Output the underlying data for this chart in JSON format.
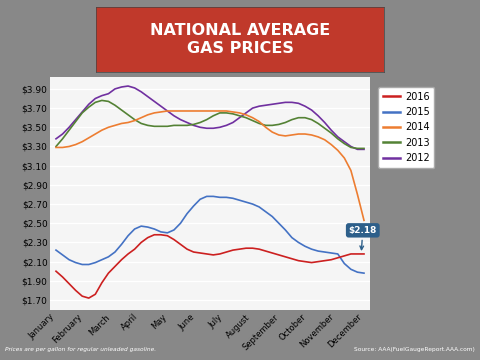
{
  "title": "NATIONAL AVERAGE\nGAS PRICES",
  "title_bg": "#c0392b",
  "chart_bg": "#f2f2f2",
  "outer_bg": "#7a7a7a",
  "ylabel_ticks": [
    "$1.70",
    "$1.90",
    "$2.10",
    "$2.30",
    "$2.50",
    "$2.70",
    "$2.90",
    "$3.10",
    "$3.30",
    "$3.50",
    "$3.70",
    "$3.90"
  ],
  "ylim": [
    1.6,
    4.02
  ],
  "months": [
    "January",
    "February",
    "March",
    "April",
    "May",
    "June",
    "July",
    "August",
    "September",
    "October",
    "November",
    "December"
  ],
  "annotation_text": "$2.18",
  "footer_left": "Prices are per gallon for regular unleaded gasoline.",
  "footer_right": "Source: AAA(FuelGaugeReport.AAA.com)",
  "legend_labels": [
    "2016",
    "2015",
    "2014",
    "2013",
    "2012"
  ],
  "legend_colors": [
    "#cc2020",
    "#4472c4",
    "#ed7d31",
    "#548235",
    "#7030a0"
  ],
  "year_data": {
    "2016": [
      2.0,
      1.94,
      1.87,
      1.8,
      1.74,
      1.72,
      1.76,
      1.88,
      1.98,
      2.05,
      2.12,
      2.18,
      2.23,
      2.3,
      2.35,
      2.38,
      2.38,
      2.37,
      2.33,
      2.28,
      2.23,
      2.2,
      2.19,
      2.18,
      2.17,
      2.18,
      2.2,
      2.22,
      2.23,
      2.24,
      2.24,
      2.23,
      2.21,
      2.19,
      2.17,
      2.15,
      2.13,
      2.11,
      2.1,
      2.09,
      2.1,
      2.11,
      2.12,
      2.14,
      2.16,
      2.18,
      2.18,
      2.18
    ],
    "2015": [
      2.22,
      2.17,
      2.12,
      2.09,
      2.07,
      2.07,
      2.09,
      2.12,
      2.15,
      2.2,
      2.28,
      2.37,
      2.44,
      2.47,
      2.46,
      2.44,
      2.41,
      2.4,
      2.43,
      2.5,
      2.6,
      2.68,
      2.75,
      2.78,
      2.78,
      2.77,
      2.77,
      2.76,
      2.74,
      2.72,
      2.7,
      2.67,
      2.62,
      2.57,
      2.5,
      2.43,
      2.35,
      2.3,
      2.26,
      2.23,
      2.21,
      2.2,
      2.19,
      2.18,
      2.08,
      2.02,
      1.99,
      1.98
    ],
    "2014": [
      3.29,
      3.29,
      3.3,
      3.32,
      3.35,
      3.39,
      3.43,
      3.47,
      3.5,
      3.52,
      3.54,
      3.55,
      3.57,
      3.6,
      3.63,
      3.65,
      3.66,
      3.67,
      3.67,
      3.67,
      3.67,
      3.67,
      3.67,
      3.67,
      3.67,
      3.67,
      3.67,
      3.66,
      3.65,
      3.63,
      3.6,
      3.56,
      3.5,
      3.45,
      3.42,
      3.41,
      3.42,
      3.43,
      3.43,
      3.42,
      3.4,
      3.37,
      3.32,
      3.26,
      3.18,
      3.05,
      2.8,
      2.53
    ],
    "2013": [
      3.3,
      3.38,
      3.47,
      3.56,
      3.65,
      3.71,
      3.76,
      3.78,
      3.77,
      3.73,
      3.68,
      3.63,
      3.58,
      3.54,
      3.52,
      3.51,
      3.51,
      3.51,
      3.52,
      3.52,
      3.52,
      3.53,
      3.55,
      3.58,
      3.62,
      3.65,
      3.65,
      3.64,
      3.62,
      3.6,
      3.57,
      3.54,
      3.52,
      3.52,
      3.53,
      3.55,
      3.58,
      3.6,
      3.6,
      3.58,
      3.54,
      3.49,
      3.44,
      3.38,
      3.33,
      3.29,
      3.28,
      3.28
    ],
    "2012": [
      3.38,
      3.43,
      3.5,
      3.58,
      3.66,
      3.74,
      3.8,
      3.83,
      3.85,
      3.9,
      3.92,
      3.93,
      3.91,
      3.87,
      3.82,
      3.77,
      3.72,
      3.67,
      3.62,
      3.58,
      3.55,
      3.52,
      3.5,
      3.49,
      3.49,
      3.5,
      3.52,
      3.55,
      3.6,
      3.65,
      3.7,
      3.72,
      3.73,
      3.74,
      3.75,
      3.76,
      3.76,
      3.75,
      3.72,
      3.68,
      3.62,
      3.55,
      3.47,
      3.4,
      3.35,
      3.3,
      3.27,
      3.27
    ]
  }
}
